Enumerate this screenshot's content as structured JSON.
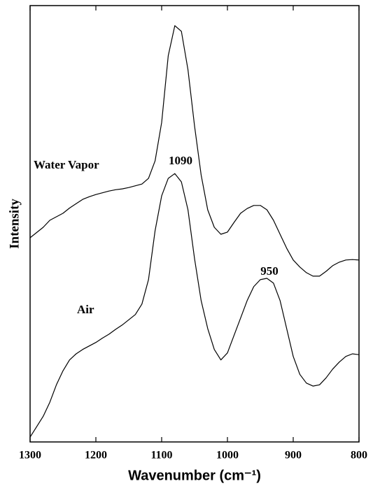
{
  "chart_data": {
    "type": "line",
    "xlabel": "Wavenumber (cm⁻¹)",
    "ylabel": "Intensity",
    "x": [
      1300,
      1290,
      1280,
      1270,
      1260,
      1250,
      1240,
      1230,
      1220,
      1210,
      1200,
      1190,
      1180,
      1170,
      1160,
      1150,
      1140,
      1130,
      1120,
      1110,
      1100,
      1090,
      1080,
      1070,
      1060,
      1050,
      1040,
      1030,
      1020,
      1010,
      1000,
      990,
      980,
      970,
      960,
      950,
      940,
      930,
      920,
      910,
      900,
      890,
      880,
      870,
      860,
      850,
      840,
      830,
      820,
      810,
      800
    ],
    "series": [
      {
        "name": "Water Vapor",
        "color": "#000000",
        "values": [
          46.8,
          48.0,
          49.2,
          50.8,
          51.6,
          52.4,
          53.6,
          54.6,
          55.6,
          56.2,
          56.7,
          57.1,
          57.5,
          57.8,
          58.0,
          58.3,
          58.7,
          59.1,
          60.4,
          64.4,
          73.2,
          88.5,
          95.4,
          94.1,
          85.3,
          72.4,
          61.2,
          53.2,
          49.2,
          47.6,
          48.1,
          50.3,
          52.4,
          53.5,
          54.2,
          54.2,
          53.2,
          50.8,
          47.6,
          44.4,
          41.7,
          40.1,
          38.8,
          38.0,
          38.0,
          39.1,
          40.4,
          41.2,
          41.7,
          41.8,
          41.7
        ]
      },
      {
        "name": "Air",
        "color": "#000000",
        "values": [
          1.1,
          3.5,
          5.9,
          9.1,
          13.1,
          16.3,
          18.8,
          20.2,
          21.2,
          22.0,
          22.8,
          23.8,
          24.7,
          25.8,
          26.8,
          28.0,
          29.2,
          31.6,
          37.2,
          48.4,
          56.4,
          60.4,
          61.5,
          59.6,
          53.2,
          42.0,
          32.4,
          26.0,
          21.2,
          18.8,
          20.4,
          24.4,
          28.4,
          32.4,
          35.6,
          37.2,
          37.5,
          36.4,
          32.4,
          26.0,
          19.6,
          15.5,
          13.5,
          12.8,
          13.1,
          14.7,
          16.7,
          18.3,
          19.6,
          20.2,
          20.0
        ]
      }
    ],
    "annotations": [
      "Water Vapor",
      "1090",
      "Air",
      "950"
    ],
    "xlim": [
      1300,
      800
    ],
    "xticks": [
      1300,
      1200,
      1100,
      1000,
      900,
      800
    ],
    "ylim": [
      0,
      100
    ],
    "grid": false
  }
}
